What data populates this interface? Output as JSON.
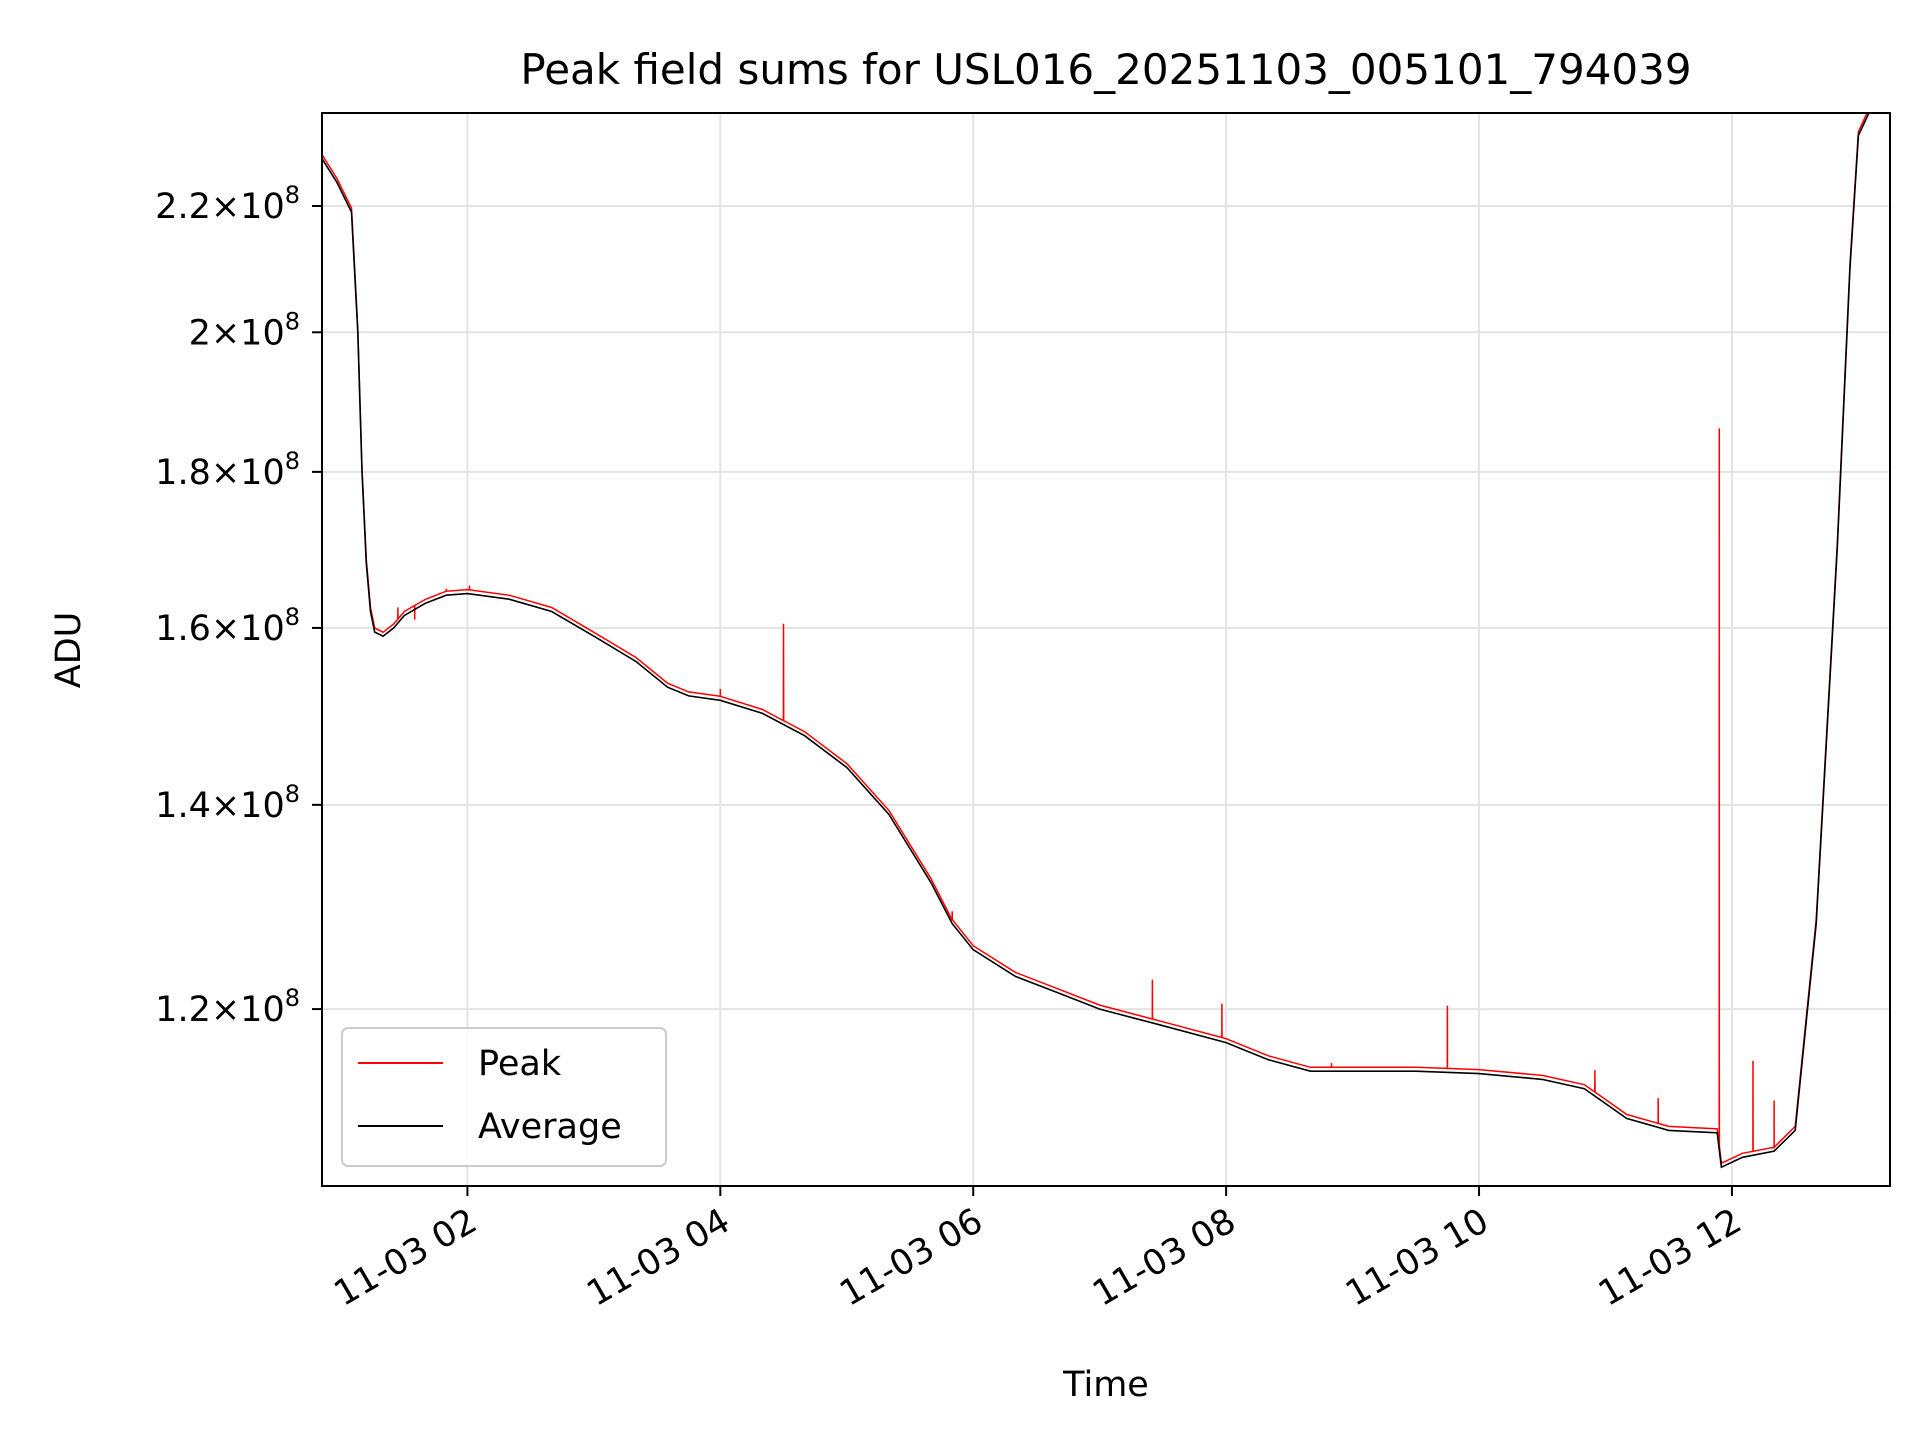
{
  "chart_data": {
    "type": "line",
    "title": "Peak field sums for USL016_20251103_005101_794039",
    "xlabel": "Time",
    "ylabel": "ADU",
    "xscale": "time",
    "yscale": "log",
    "xlim": [
      "2025-11-03 00:51",
      "2025-11-03 13:15"
    ],
    "ylim": [
      105000000,
      236000000
    ],
    "x_ticks": [
      "11-03 02",
      "11-03 04",
      "11-03 06",
      "11-03 08",
      "11-03 10",
      "11-03 12"
    ],
    "y_ticks": [
      {
        "value": 120000000,
        "mantissa": "1.2",
        "base": "10",
        "exp": "8"
      },
      {
        "value": 140000000,
        "mantissa": "1.4",
        "base": "10",
        "exp": "8"
      },
      {
        "value": 160000000,
        "mantissa": "1.6",
        "base": "10",
        "exp": "8"
      },
      {
        "value": 180000000,
        "mantissa": "1.8",
        "base": "10",
        "exp": "8"
      },
      {
        "value": 200000000,
        "mantissa": "2",
        "base": "10",
        "exp": "8"
      },
      {
        "value": 220000000,
        "mantissa": "2.2",
        "base": "10",
        "exp": "8"
      }
    ],
    "grid": true,
    "legend_position": "lower-left",
    "series": [
      {
        "name": "Average",
        "color": "#000000",
        "x": [
          "00:51",
          "00:58",
          "01:05",
          "01:08",
          "01:10",
          "01:12",
          "01:14",
          "01:16",
          "01:20",
          "01:25",
          "01:30",
          "01:40",
          "01:50",
          "02:00",
          "02:20",
          "02:40",
          "03:00",
          "03:20",
          "03:35",
          "03:45",
          "04:00",
          "04:20",
          "04:40",
          "05:00",
          "05:20",
          "05:40",
          "05:50",
          "06:00",
          "06:20",
          "06:40",
          "07:00",
          "07:30",
          "08:00",
          "08:20",
          "08:40",
          "09:00",
          "09:30",
          "10:00",
          "10:30",
          "10:50",
          "11:10",
          "11:30",
          "11:53",
          "11:55",
          "12:05",
          "12:20",
          "12:30",
          "12:40",
          "12:50",
          "12:56",
          "13:00",
          "13:05"
        ],
        "y": [
          228000000,
          224000000,
          219000000,
          200000000,
          180000000,
          168000000,
          162000000,
          159500000,
          159000000,
          160000000,
          161500000,
          163000000,
          164000000,
          164200000,
          163500000,
          162000000,
          159000000,
          156000000,
          153000000,
          152000000,
          151500000,
          150000000,
          147500000,
          144000000,
          139000000,
          132000000,
          128000000,
          125500000,
          123000000,
          121500000,
          120000000,
          118500000,
          117000000,
          115500000,
          114500000,
          114500000,
          114500000,
          114300000,
          113800000,
          113000000,
          110500000,
          109500000,
          109300000,
          106500000,
          107300000,
          107800000,
          109500000,
          128000000,
          170000000,
          210000000,
          232000000,
          236000000
        ]
      },
      {
        "name": "Peak",
        "color": "#ff0000",
        "spikes": [
          {
            "x": "01:27",
            "y": 162500000
          },
          {
            "x": "01:35",
            "y": 161000000
          },
          {
            "x": "01:50",
            "y": 164800000
          },
          {
            "x": "02:01",
            "y": 165200000
          },
          {
            "x": "04:00",
            "y": 152800000
          },
          {
            "x": "04:30",
            "y": 160500000
          },
          {
            "x": "05:50",
            "y": 129200000
          },
          {
            "x": "07:25",
            "y": 122700000
          },
          {
            "x": "07:58",
            "y": 120500000
          },
          {
            "x": "08:50",
            "y": 115200000
          },
          {
            "x": "09:45",
            "y": 120300000
          },
          {
            "x": "10:55",
            "y": 114600000
          },
          {
            "x": "11:25",
            "y": 112200000
          },
          {
            "x": "11:54",
            "y": 186000000
          },
          {
            "x": "11:54",
            "y": 115000000
          },
          {
            "x": "12:10",
            "y": 115400000
          },
          {
            "x": "12:20",
            "y": 112000000
          }
        ]
      }
    ]
  }
}
